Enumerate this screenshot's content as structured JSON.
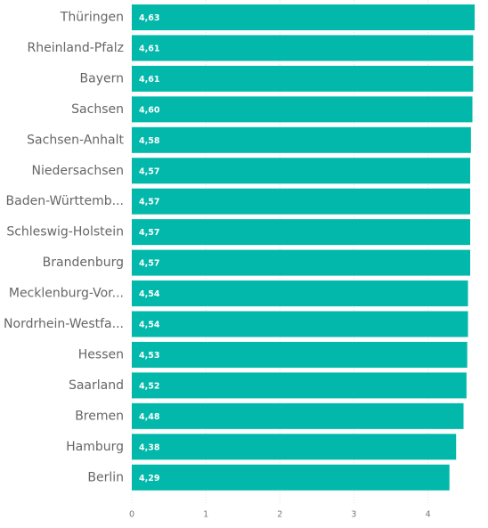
{
  "chart_data": {
    "type": "bar",
    "orientation": "horizontal",
    "categories": [
      "Thüringen",
      "Rheinland-Pfalz",
      "Bayern",
      "Sachsen",
      "Sachsen-Anhalt",
      "Niedersachsen",
      "Baden-Württemb...",
      "Schleswig-Holstein",
      "Brandenburg",
      "Mecklenburg-Vor...",
      "Nordrhein-Westfa...",
      "Hessen",
      "Saarland",
      "Bremen",
      "Hamburg",
      "Berlin"
    ],
    "values": [
      4.63,
      4.61,
      4.61,
      4.6,
      4.58,
      4.57,
      4.57,
      4.57,
      4.57,
      4.54,
      4.54,
      4.53,
      4.52,
      4.48,
      4.38,
      4.29
    ],
    "value_labels": [
      "4,63",
      "4,61",
      "4,61",
      "4,60",
      "4,58",
      "4,57",
      "4,57",
      "4,57",
      "4,57",
      "4,54",
      "4,54",
      "4,53",
      "4,52",
      "4,48",
      "4,38",
      "4,29"
    ],
    "x_ticks": [
      0,
      1,
      2,
      3,
      4
    ],
    "xlim": [
      0,
      4.63
    ],
    "title": "",
    "xlabel": "",
    "ylabel": "",
    "grid": true,
    "bar_color": "#01B8AA"
  }
}
